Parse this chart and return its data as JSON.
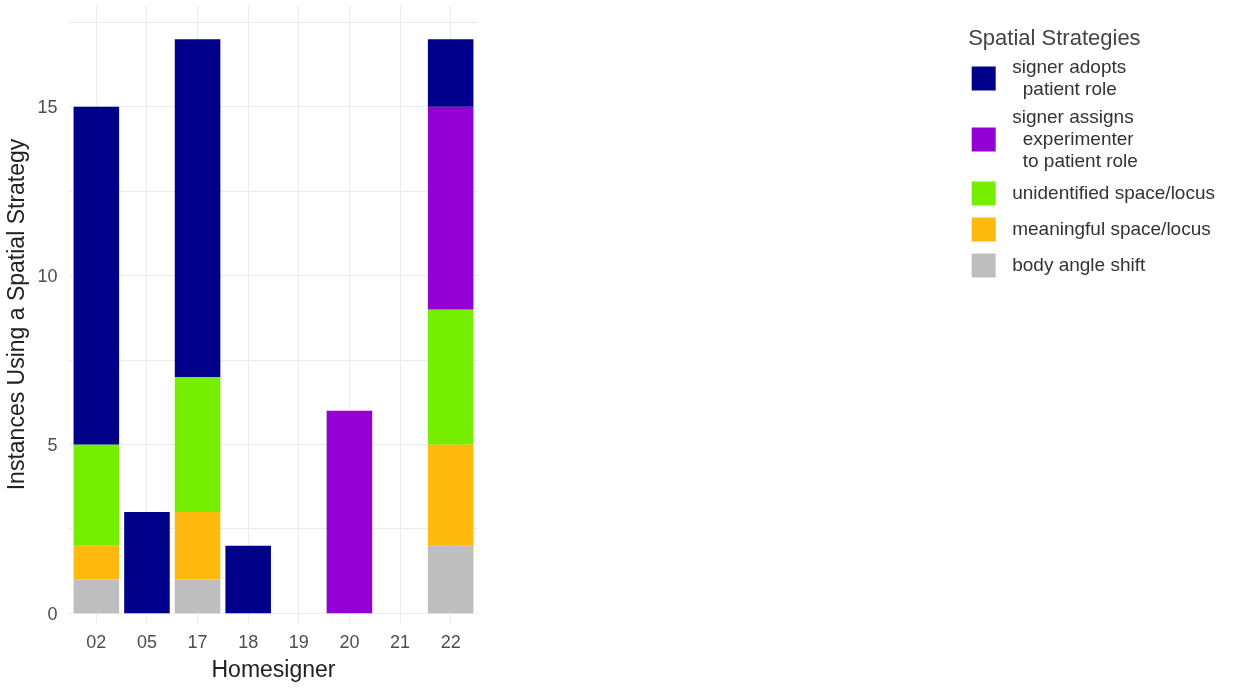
{
  "chart_data": {
    "type": "bar",
    "stacked": true,
    "xlabel": "Homesigner",
    "ylabel": "Instances Using a Spatial Strategy",
    "legend_title": "Spatial Strategies",
    "legend": "right",
    "grid": true,
    "categories": [
      "02",
      "05",
      "17",
      "18",
      "19",
      "20",
      "21",
      "22"
    ],
    "ylim": [
      -0.3,
      18
    ],
    "yticks": [
      0,
      {
        "value": 2.5,
        "label": null
      },
      5,
      {
        "value": 7.5,
        "label": null
      },
      10,
      {
        "value": 12.5,
        "label": null
      },
      15,
      {
        "value": 17.5,
        "label": null
      }
    ],
    "series": [
      {
        "name": "body angle shift",
        "color": "#bebebe",
        "values": [
          1,
          0,
          1,
          0,
          0,
          0,
          0,
          2
        ]
      },
      {
        "name": "meaningful space/locus",
        "color": "#ffb90f",
        "values": [
          1,
          0,
          2,
          0,
          0,
          0,
          0,
          3
        ]
      },
      {
        "name": "unidentified space/locus",
        "color": "#76ee00",
        "values": [
          3,
          0,
          4,
          0,
          0,
          0,
          0,
          4
        ]
      },
      {
        "name": "signer assigns\n  experimenter\n  to patient role",
        "color": "#9400d3",
        "values": [
          0,
          0,
          0,
          0,
          0,
          6,
          0,
          6
        ]
      },
      {
        "name": "signer adopts\n  patient role",
        "color": "#00008b",
        "values": [
          10,
          3,
          10,
          2,
          0,
          0,
          0,
          2
        ]
      }
    ]
  }
}
